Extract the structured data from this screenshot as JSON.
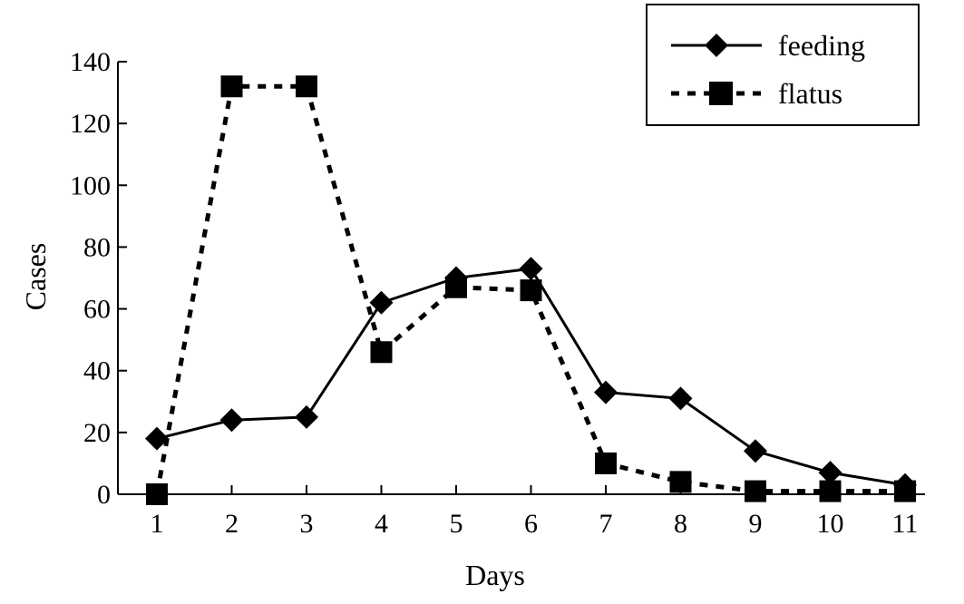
{
  "chart_data": {
    "type": "line",
    "xlabel": "Days",
    "ylabel": "Cases",
    "x": [
      1,
      2,
      3,
      4,
      5,
      6,
      7,
      8,
      9,
      10,
      11
    ],
    "xlim": [
      1,
      11
    ],
    "ylim": [
      0,
      140
    ],
    "yticks": [
      0,
      20,
      40,
      60,
      80,
      100,
      120,
      140
    ],
    "grid": false,
    "legend_position": "top-right",
    "series": [
      {
        "name": "feeding",
        "marker": "diamond",
        "line_style": "solid",
        "values": [
          18,
          24,
          25,
          62,
          70,
          73,
          33,
          31,
          14,
          7,
          3
        ]
      },
      {
        "name": "flatus",
        "marker": "square",
        "line_style": "dashed",
        "values": [
          0,
          132,
          132,
          46,
          67,
          66,
          10,
          4,
          1,
          1,
          1
        ]
      }
    ]
  }
}
